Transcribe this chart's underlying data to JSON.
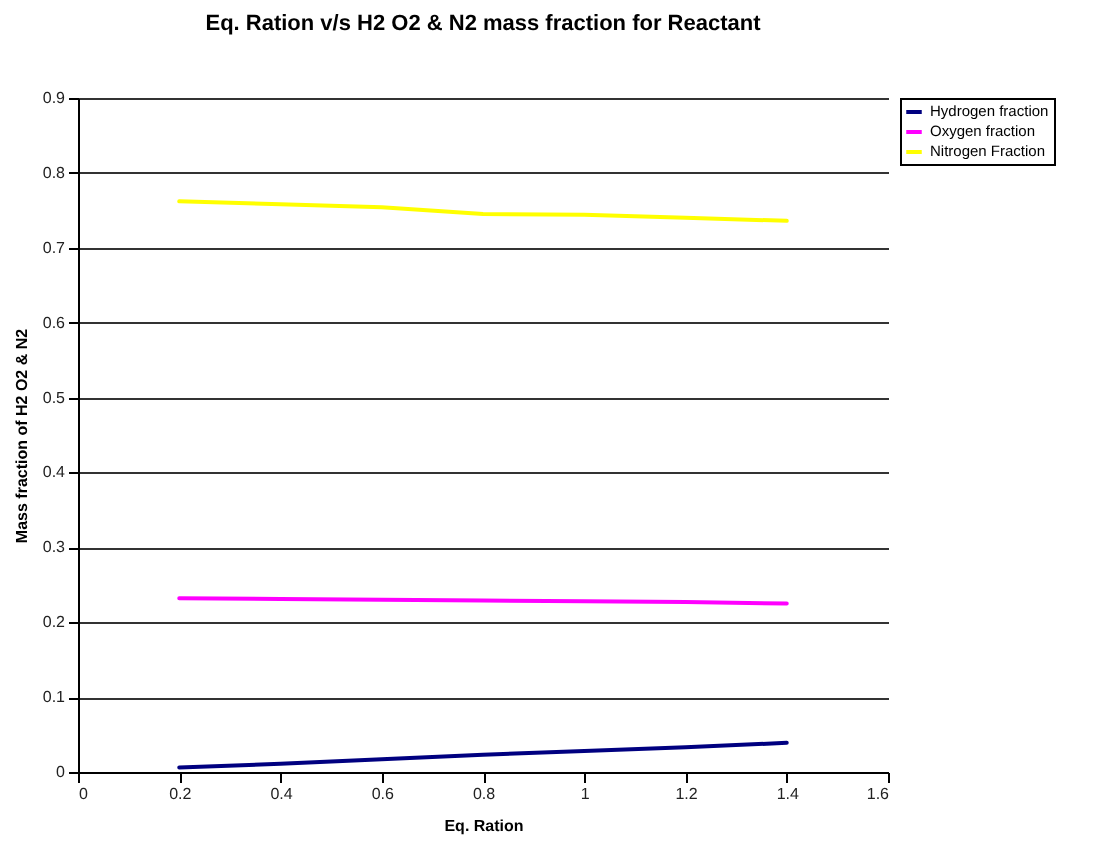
{
  "chart_data": {
    "type": "line",
    "title": "Eq. Ration v/s H2 O2 & N2 mass fraction for Reactant",
    "xlabel": "Eq. Ration",
    "ylabel": "Mass fraction of H2 O2 & N2",
    "x": [
      0.2,
      0.4,
      0.6,
      0.8,
      1.0,
      1.2,
      1.4
    ],
    "series": [
      {
        "name": "Hydrogen fraction",
        "color": "#000080",
        "values": [
          0.006,
          0.011,
          0.017,
          0.023,
          0.028,
          0.033,
          0.039
        ]
      },
      {
        "name": "Oxygen fraction",
        "color": "#ff00ff",
        "values": [
          0.232,
          0.231,
          0.23,
          0.229,
          0.228,
          0.227,
          0.225
        ]
      },
      {
        "name": "Nitrogen Fraction",
        "color": "#ffff00",
        "values": [
          0.762,
          0.758,
          0.754,
          0.745,
          0.744,
          0.74,
          0.736
        ]
      }
    ],
    "xlim": [
      0,
      1.6
    ],
    "xticks": [
      0,
      0.2,
      0.4,
      0.6,
      0.8,
      1,
      1.2,
      1.4,
      1.6
    ],
    "ylim": [
      0,
      0.9
    ],
    "yticks": [
      0,
      0.1,
      0.2,
      0.3,
      0.4,
      0.5,
      0.6,
      0.7,
      0.8,
      0.9
    ],
    "grid": "y",
    "legend": "right",
    "marker": "none",
    "line_style": "solid"
  }
}
